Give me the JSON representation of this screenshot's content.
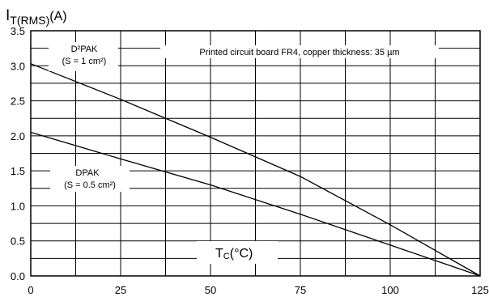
{
  "chart_data": {
    "type": "line",
    "title": "",
    "ylabel": {
      "main": "I",
      "sub": "T(RMS)",
      "unit": "(A)"
    },
    "xlabel": {
      "main": "T",
      "sub": "C",
      "unit": "(°C)"
    },
    "xlim": [
      0,
      125
    ],
    "ylim": [
      0,
      3.5
    ],
    "x_ticks": [
      0,
      25,
      50,
      75,
      100,
      125
    ],
    "x_tick_labels": [
      "0",
      "25",
      "50",
      "75",
      "100",
      "125"
    ],
    "y_ticks": [
      0.0,
      0.5,
      1.0,
      1.5,
      2.0,
      2.5,
      3.0,
      3.5
    ],
    "y_tick_labels": [
      "0.0",
      "0.5",
      "1.0",
      "1.5",
      "2.0",
      "2.5",
      "3.0",
      "3.5"
    ],
    "grid": true,
    "vertical_gridlines": 10,
    "horizontal_gridlines": 14,
    "series": [
      {
        "x": [
          0,
          25,
          50,
          75,
          100,
          125
        ],
        "y": [
          3.03,
          2.52,
          1.98,
          1.42,
          0.73,
          0.0
        ]
      },
      {
        "x": [
          0,
          25,
          50,
          75,
          100,
          125
        ],
        "y": [
          2.05,
          1.67,
          1.3,
          0.88,
          0.44,
          0.0
        ]
      }
    ],
    "annotations": {
      "d2pak_line1": "D²PAK",
      "d2pak_line2": "(S = 1 cm²)",
      "dpak_line1": "DPAK",
      "dpak_line2": "(S = 0.5 cm²)",
      "board_note": "Printed circuit board FR4, copper thickness: 35 µm"
    }
  }
}
